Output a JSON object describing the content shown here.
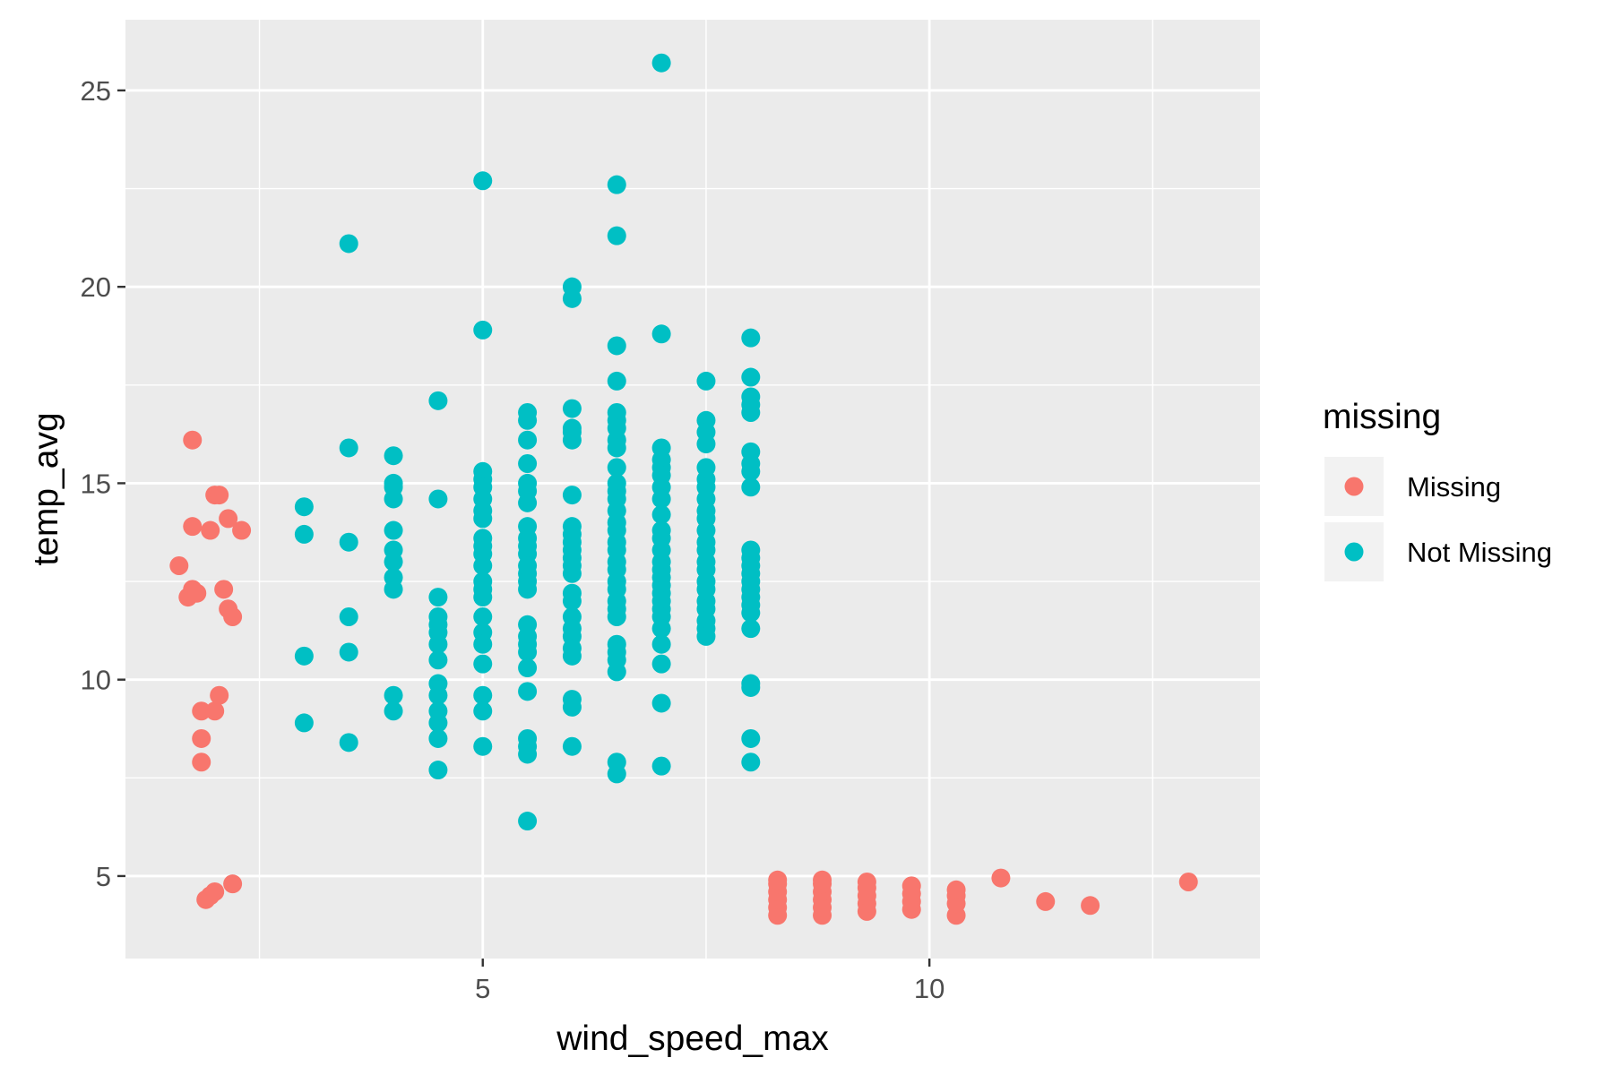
{
  "chart_data": {
    "type": "scatter",
    "xlabel": "wind_speed_max",
    "ylabel": "temp_avg",
    "xlim": [
      1.0,
      13.7
    ],
    "ylim": [
      2.9,
      26.8
    ],
    "x_ticks": [
      5,
      10
    ],
    "y_ticks": [
      5,
      10,
      15,
      20,
      25
    ],
    "grid": true,
    "legend": {
      "title": "missing",
      "position": "right"
    },
    "series": [
      {
        "name": "Missing",
        "color": "#F8766D",
        "points": [
          [
            1.6,
            12.9
          ],
          [
            1.7,
            12.1
          ],
          [
            1.75,
            12.3
          ],
          [
            1.8,
            12.2
          ],
          [
            1.75,
            16.1
          ],
          [
            1.75,
            13.9
          ],
          [
            1.85,
            9.2
          ],
          [
            1.85,
            8.5
          ],
          [
            1.85,
            7.9
          ],
          [
            1.9,
            4.4
          ],
          [
            1.95,
            4.5
          ],
          [
            2.0,
            4.6
          ],
          [
            2.0,
            9.2
          ],
          [
            1.95,
            13.8
          ],
          [
            2.0,
            14.7
          ],
          [
            2.05,
            14.7
          ],
          [
            2.05,
            9.6
          ],
          [
            2.1,
            12.3
          ],
          [
            2.15,
            14.1
          ],
          [
            2.15,
            11.8
          ],
          [
            2.2,
            11.6
          ],
          [
            2.2,
            4.8
          ],
          [
            2.3,
            13.8
          ],
          [
            8.3,
            4.0
          ],
          [
            8.3,
            4.2
          ],
          [
            8.3,
            4.4
          ],
          [
            8.3,
            4.6
          ],
          [
            8.3,
            4.8
          ],
          [
            8.3,
            4.9
          ],
          [
            8.8,
            4.0
          ],
          [
            8.8,
            4.2
          ],
          [
            8.8,
            4.4
          ],
          [
            8.8,
            4.6
          ],
          [
            8.8,
            4.8
          ],
          [
            8.8,
            4.9
          ],
          [
            9.3,
            4.1
          ],
          [
            9.3,
            4.3
          ],
          [
            9.3,
            4.5
          ],
          [
            9.3,
            4.7
          ],
          [
            9.3,
            4.85
          ],
          [
            9.8,
            4.15
          ],
          [
            9.8,
            4.35
          ],
          [
            9.8,
            4.55
          ],
          [
            9.8,
            4.75
          ],
          [
            10.3,
            4.0
          ],
          [
            10.3,
            4.3
          ],
          [
            10.3,
            4.5
          ],
          [
            10.3,
            4.65
          ],
          [
            10.8,
            4.95
          ],
          [
            11.3,
            4.35
          ],
          [
            11.8,
            4.25
          ],
          [
            12.9,
            4.85
          ]
        ]
      },
      {
        "name": "Not Missing",
        "color": "#00BFC4",
        "points": [
          [
            3.0,
            14.4
          ],
          [
            3.0,
            13.7
          ],
          [
            3.0,
            10.6
          ],
          [
            3.0,
            8.9
          ],
          [
            3.5,
            21.1
          ],
          [
            3.5,
            15.9
          ],
          [
            3.5,
            13.5
          ],
          [
            3.5,
            11.6
          ],
          [
            3.5,
            10.7
          ],
          [
            3.5,
            8.4
          ],
          [
            4.0,
            15.7
          ],
          [
            4.0,
            15.0
          ],
          [
            4.0,
            14.9
          ],
          [
            4.0,
            14.6
          ],
          [
            4.0,
            13.8
          ],
          [
            4.0,
            13.3
          ],
          [
            4.0,
            13.0
          ],
          [
            4.0,
            12.6
          ],
          [
            4.0,
            12.3
          ],
          [
            4.0,
            9.6
          ],
          [
            4.0,
            9.2
          ],
          [
            4.5,
            17.1
          ],
          [
            4.5,
            14.6
          ],
          [
            4.5,
            12.1
          ],
          [
            4.5,
            11.6
          ],
          [
            4.5,
            11.4
          ],
          [
            4.5,
            11.2
          ],
          [
            4.5,
            10.9
          ],
          [
            4.5,
            10.5
          ],
          [
            4.5,
            9.9
          ],
          [
            4.5,
            9.6
          ],
          [
            4.5,
            9.2
          ],
          [
            4.5,
            8.9
          ],
          [
            4.5,
            8.5
          ],
          [
            4.5,
            7.7
          ],
          [
            5.0,
            22.7
          ],
          [
            5.0,
            18.9
          ],
          [
            5.0,
            15.3
          ],
          [
            5.0,
            15.1
          ],
          [
            5.0,
            14.9
          ],
          [
            5.0,
            14.6
          ],
          [
            5.0,
            14.3
          ],
          [
            5.0,
            14.1
          ],
          [
            5.0,
            13.6
          ],
          [
            5.0,
            13.4
          ],
          [
            5.0,
            13.2
          ],
          [
            5.0,
            12.9
          ],
          [
            5.0,
            12.5
          ],
          [
            5.0,
            12.3
          ],
          [
            5.0,
            12.1
          ],
          [
            5.0,
            11.6
          ],
          [
            5.0,
            11.2
          ],
          [
            5.0,
            10.9
          ],
          [
            5.0,
            10.4
          ],
          [
            5.0,
            9.6
          ],
          [
            5.0,
            9.2
          ],
          [
            5.0,
            8.3
          ],
          [
            5.5,
            16.8
          ],
          [
            5.5,
            16.6
          ],
          [
            5.5,
            16.1
          ],
          [
            5.5,
            15.5
          ],
          [
            5.5,
            15.0
          ],
          [
            5.5,
            14.8
          ],
          [
            5.5,
            14.5
          ],
          [
            5.5,
            13.9
          ],
          [
            5.5,
            13.6
          ],
          [
            5.5,
            13.4
          ],
          [
            5.5,
            13.2
          ],
          [
            5.5,
            12.9
          ],
          [
            5.5,
            12.7
          ],
          [
            5.5,
            12.5
          ],
          [
            5.5,
            12.3
          ],
          [
            5.5,
            11.4
          ],
          [
            5.5,
            11.1
          ],
          [
            5.5,
            10.9
          ],
          [
            5.5,
            10.7
          ],
          [
            5.5,
            10.3
          ],
          [
            5.5,
            9.7
          ],
          [
            5.5,
            8.5
          ],
          [
            5.5,
            8.3
          ],
          [
            5.5,
            8.1
          ],
          [
            5.5,
            6.4
          ],
          [
            6.0,
            20.0
          ],
          [
            6.0,
            19.7
          ],
          [
            6.0,
            16.9
          ],
          [
            6.0,
            16.4
          ],
          [
            6.0,
            16.3
          ],
          [
            6.0,
            16.1
          ],
          [
            6.0,
            14.7
          ],
          [
            6.0,
            13.9
          ],
          [
            6.0,
            13.7
          ],
          [
            6.0,
            13.5
          ],
          [
            6.0,
            13.3
          ],
          [
            6.0,
            13.1
          ],
          [
            6.0,
            12.9
          ],
          [
            6.0,
            12.7
          ],
          [
            6.0,
            12.2
          ],
          [
            6.0,
            12.0
          ],
          [
            6.0,
            11.6
          ],
          [
            6.0,
            11.3
          ],
          [
            6.0,
            11.1
          ],
          [
            6.0,
            10.8
          ],
          [
            6.0,
            10.6
          ],
          [
            6.0,
            9.5
          ],
          [
            6.0,
            9.3
          ],
          [
            6.0,
            8.3
          ],
          [
            6.5,
            22.6
          ],
          [
            6.5,
            21.3
          ],
          [
            6.5,
            18.5
          ],
          [
            6.5,
            17.6
          ],
          [
            6.5,
            16.8
          ],
          [
            6.5,
            16.6
          ],
          [
            6.5,
            16.4
          ],
          [
            6.5,
            16.1
          ],
          [
            6.5,
            15.9
          ],
          [
            6.5,
            15.4
          ],
          [
            6.5,
            15.0
          ],
          [
            6.5,
            14.8
          ],
          [
            6.5,
            14.6
          ],
          [
            6.5,
            14.3
          ],
          [
            6.5,
            14.0
          ],
          [
            6.5,
            13.8
          ],
          [
            6.5,
            13.5
          ],
          [
            6.5,
            13.3
          ],
          [
            6.5,
            13.0
          ],
          [
            6.5,
            12.8
          ],
          [
            6.5,
            12.5
          ],
          [
            6.5,
            12.3
          ],
          [
            6.5,
            12.0
          ],
          [
            6.5,
            11.8
          ],
          [
            6.5,
            11.6
          ],
          [
            6.5,
            10.9
          ],
          [
            6.5,
            10.7
          ],
          [
            6.5,
            10.5
          ],
          [
            6.5,
            10.2
          ],
          [
            6.5,
            7.9
          ],
          [
            6.5,
            7.6
          ],
          [
            7.0,
            25.7
          ],
          [
            7.0,
            18.8
          ],
          [
            7.0,
            15.9
          ],
          [
            7.0,
            15.6
          ],
          [
            7.0,
            15.4
          ],
          [
            7.0,
            15.2
          ],
          [
            7.0,
            14.9
          ],
          [
            7.0,
            14.6
          ],
          [
            7.0,
            14.2
          ],
          [
            7.0,
            13.8
          ],
          [
            7.0,
            13.6
          ],
          [
            7.0,
            13.3
          ],
          [
            7.0,
            13.0
          ],
          [
            7.0,
            12.8
          ],
          [
            7.0,
            12.6
          ],
          [
            7.0,
            12.4
          ],
          [
            7.0,
            12.2
          ],
          [
            7.0,
            12.0
          ],
          [
            7.0,
            11.8
          ],
          [
            7.0,
            11.6
          ],
          [
            7.0,
            11.3
          ],
          [
            7.0,
            10.9
          ],
          [
            7.0,
            10.4
          ],
          [
            7.0,
            9.4
          ],
          [
            7.0,
            7.8
          ],
          [
            7.5,
            17.6
          ],
          [
            7.5,
            16.6
          ],
          [
            7.5,
            16.3
          ],
          [
            7.5,
            16.0
          ],
          [
            7.5,
            15.4
          ],
          [
            7.5,
            15.1
          ],
          [
            7.5,
            14.9
          ],
          [
            7.5,
            14.6
          ],
          [
            7.5,
            14.3
          ],
          [
            7.5,
            14.1
          ],
          [
            7.5,
            13.8
          ],
          [
            7.5,
            13.5
          ],
          [
            7.5,
            13.3
          ],
          [
            7.5,
            13.0
          ],
          [
            7.5,
            12.8
          ],
          [
            7.5,
            12.5
          ],
          [
            7.5,
            12.3
          ],
          [
            7.5,
            12.0
          ],
          [
            7.5,
            11.8
          ],
          [
            7.5,
            11.5
          ],
          [
            7.5,
            11.3
          ],
          [
            7.5,
            11.1
          ],
          [
            8.0,
            18.7
          ],
          [
            8.0,
            17.7
          ],
          [
            8.0,
            17.2
          ],
          [
            8.0,
            17.0
          ],
          [
            8.0,
            16.8
          ],
          [
            8.0,
            15.8
          ],
          [
            8.0,
            15.5
          ],
          [
            8.0,
            15.3
          ],
          [
            8.0,
            14.9
          ],
          [
            8.0,
            13.3
          ],
          [
            8.0,
            13.1
          ],
          [
            8.0,
            12.9
          ],
          [
            8.0,
            12.7
          ],
          [
            8.0,
            12.5
          ],
          [
            8.0,
            12.3
          ],
          [
            8.0,
            12.1
          ],
          [
            8.0,
            11.9
          ],
          [
            8.0,
            11.7
          ],
          [
            8.0,
            11.3
          ],
          [
            8.0,
            9.9
          ],
          [
            8.0,
            9.8
          ],
          [
            8.0,
            8.5
          ],
          [
            8.0,
            7.9
          ]
        ]
      }
    ]
  }
}
